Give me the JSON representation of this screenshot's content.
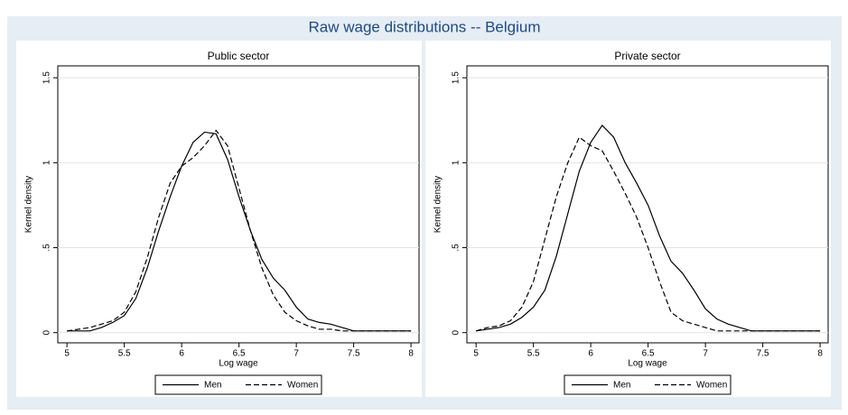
{
  "title": "Raw wage distributions -- Belgium",
  "chart_data": [
    {
      "type": "line",
      "title": "Public sector",
      "xlabel": "Log wage",
      "ylabel": "Kernel density",
      "xlim": [
        4.92,
        8.07
      ],
      "ylim": [
        -0.06,
        1.57
      ],
      "xticks": [
        5,
        5.5,
        6,
        6.5,
        7,
        7.5,
        8
      ],
      "yticks": [
        0,
        {
          "value": 0.5,
          "label": ".5"
        },
        1,
        1.5
      ],
      "grid": true,
      "x": [
        5.0,
        5.1,
        5.2,
        5.3,
        5.4,
        5.5,
        5.6,
        5.7,
        5.8,
        5.9,
        6.0,
        6.1,
        6.2,
        6.3,
        6.4,
        6.5,
        6.6,
        6.7,
        6.8,
        6.9,
        7.0,
        7.1,
        7.2,
        7.3,
        7.4,
        7.5,
        7.6,
        7.7,
        7.8,
        7.9,
        8.0
      ],
      "series": [
        {
          "name": "Men",
          "color": "#000000",
          "style": "solid",
          "values": [
            0.01,
            0.01,
            0.01,
            0.03,
            0.06,
            0.1,
            0.2,
            0.38,
            0.6,
            0.8,
            0.98,
            1.12,
            1.18,
            1.17,
            1.02,
            0.8,
            0.6,
            0.43,
            0.32,
            0.25,
            0.15,
            0.08,
            0.06,
            0.05,
            0.03,
            0.01,
            0.01,
            0.01,
            0.01,
            0.01,
            0.01
          ]
        },
        {
          "name": "Women",
          "color": "#000000",
          "style": "dashed",
          "values": [
            0.01,
            0.02,
            0.03,
            0.05,
            0.07,
            0.12,
            0.24,
            0.44,
            0.68,
            0.88,
            0.98,
            1.03,
            1.1,
            1.19,
            1.1,
            0.85,
            0.6,
            0.38,
            0.22,
            0.12,
            0.07,
            0.04,
            0.02,
            0.02,
            0.01,
            0.01,
            0.01,
            0.01,
            0.01,
            0.01,
            0.01
          ]
        }
      ]
    },
    {
      "type": "line",
      "title": "Private sector",
      "xlabel": "Log wage",
      "ylabel": "Kernel density",
      "xlim": [
        4.92,
        8.07
      ],
      "ylim": [
        -0.06,
        1.57
      ],
      "xticks": [
        5,
        5.5,
        6,
        6.5,
        7,
        7.5,
        8
      ],
      "yticks": [
        0,
        {
          "value": 0.5,
          "label": ".5"
        },
        1,
        1.5
      ],
      "grid": true,
      "x": [
        5.0,
        5.1,
        5.2,
        5.3,
        5.4,
        5.5,
        5.6,
        5.7,
        5.8,
        5.9,
        6.0,
        6.1,
        6.2,
        6.3,
        6.4,
        6.5,
        6.6,
        6.7,
        6.8,
        6.9,
        7.0,
        7.1,
        7.2,
        7.3,
        7.4,
        7.5,
        7.6,
        7.7,
        7.8,
        7.9,
        8.0
      ],
      "series": [
        {
          "name": "Men",
          "color": "#000000",
          "style": "solid",
          "values": [
            0.01,
            0.02,
            0.03,
            0.05,
            0.09,
            0.15,
            0.25,
            0.45,
            0.7,
            0.95,
            1.12,
            1.22,
            1.15,
            1.0,
            0.88,
            0.75,
            0.57,
            0.42,
            0.35,
            0.25,
            0.14,
            0.08,
            0.05,
            0.03,
            0.01,
            0.01,
            0.01,
            0.01,
            0.01,
            0.01,
            0.01
          ]
        },
        {
          "name": "Women",
          "color": "#000000",
          "style": "dashed",
          "values": [
            0.01,
            0.03,
            0.04,
            0.07,
            0.15,
            0.3,
            0.55,
            0.8,
            1.0,
            1.15,
            1.1,
            1.07,
            0.95,
            0.82,
            0.68,
            0.5,
            0.3,
            0.12,
            0.07,
            0.05,
            0.03,
            0.01,
            0.01,
            0.01,
            0.01,
            0.01,
            0.01,
            0.01,
            0.01,
            0.01,
            0.01
          ]
        }
      ]
    }
  ]
}
